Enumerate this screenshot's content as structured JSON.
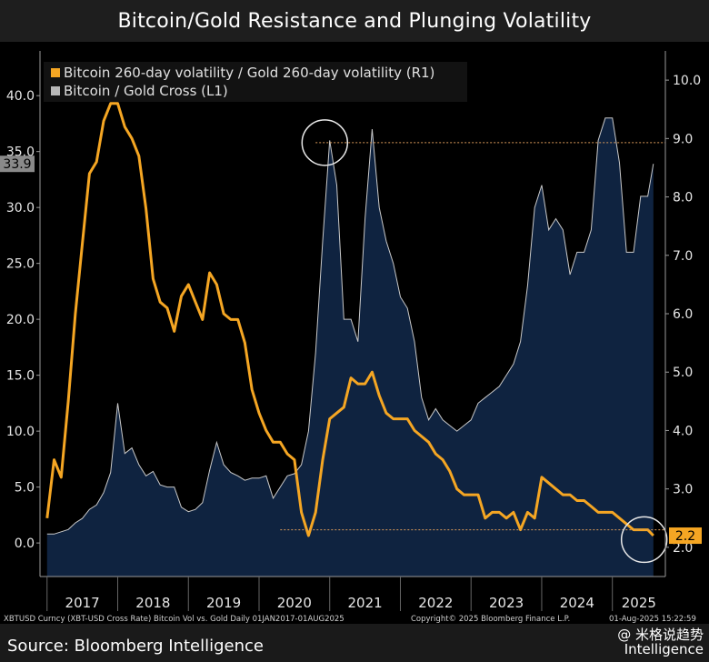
{
  "header": {
    "title": "Bitcoin/Gold Resistance and Plunging Volatility"
  },
  "footer": {
    "source": "Source: Bloomberg Intelligence",
    "ticker_note": "XBTUSD Curncy (XBT-USD Cross Rate) Bitcoin Vol vs. Gold  Daily 01JAN2017-01AUG2025",
    "copyright": "Copyright© 2025 Bloomberg Finance L.P.",
    "timestamp": "01-Aug-2025 15:22:59",
    "watermark": "@ 米格说趋势",
    "watermark_sub": "Intelligence"
  },
  "chart_data": {
    "type": "line",
    "title": "Bitcoin/Gold Resistance and Plunging Volatility",
    "left_axis": {
      "ylim": [
        -3,
        44
      ],
      "ticks": [
        "0.0",
        "5.0",
        "10.0",
        "15.0",
        "20.0",
        "25.0",
        "30.0",
        "35.0",
        "40.0"
      ]
    },
    "right_axis": {
      "ylim": [
        1.5,
        10.5
      ],
      "ticks": [
        "2.0",
        "3.0",
        "4.0",
        "5.0",
        "6.0",
        "7.0",
        "8.0",
        "9.0",
        "10.0"
      ]
    },
    "x_labels": [
      "2017",
      "2018",
      "2019",
      "2020",
      "2021",
      "2022",
      "2023",
      "2024",
      "2025"
    ],
    "legend": {
      "position": "top-left",
      "entries": [
        "Bitcoin 260-day volatility / Gold 260-day volatility (R1)",
        "Bitcoin / Gold Cross (L1)"
      ]
    },
    "last_value_labels": {
      "left": "33.9",
      "right": "2.2"
    },
    "colors": {
      "volatility": "#f5a623",
      "cross_line": "#c9c9c9",
      "cross_fill": "#0f2340",
      "reference": "#d99a5a"
    },
    "series": [
      {
        "name": "Bitcoin 260-day volatility / Gold 260-day volatility (R1)",
        "axis": "right",
        "x": [
          2017.0,
          2017.1,
          2017.2,
          2017.3,
          2017.4,
          2017.5,
          2017.6,
          2017.7,
          2017.8,
          2017.9,
          2018.0,
          2018.1,
          2018.2,
          2018.3,
          2018.4,
          2018.5,
          2018.6,
          2018.7,
          2018.8,
          2018.9,
          2019.0,
          2019.1,
          2019.2,
          2019.3,
          2019.4,
          2019.5,
          2019.6,
          2019.7,
          2019.8,
          2019.9,
          2020.0,
          2020.1,
          2020.2,
          2020.3,
          2020.4,
          2020.5,
          2020.6,
          2020.7,
          2020.8,
          2020.9,
          2021.0,
          2021.1,
          2021.2,
          2021.3,
          2021.4,
          2021.5,
          2021.6,
          2021.7,
          2021.8,
          2021.9,
          2022.0,
          2022.1,
          2022.2,
          2022.3,
          2022.4,
          2022.5,
          2022.6,
          2022.7,
          2022.8,
          2022.9,
          2023.0,
          2023.1,
          2023.2,
          2023.3,
          2023.4,
          2023.5,
          2023.6,
          2023.7,
          2023.8,
          2023.9,
          2024.0,
          2024.1,
          2024.2,
          2024.3,
          2024.4,
          2024.5,
          2024.6,
          2024.7,
          2024.8,
          2024.9,
          2025.0,
          2025.1,
          2025.2,
          2025.3,
          2025.4,
          2025.5,
          2025.58
        ],
        "values": [
          2.5,
          3.5,
          3.2,
          4.5,
          6.0,
          7.2,
          8.4,
          8.6,
          9.3,
          9.6,
          9.6,
          9.2,
          9.0,
          8.7,
          7.8,
          6.6,
          6.2,
          6.1,
          5.7,
          6.3,
          6.5,
          6.2,
          5.9,
          6.7,
          6.5,
          6.0,
          5.9,
          5.9,
          5.5,
          4.7,
          4.3,
          4.0,
          3.8,
          3.8,
          3.6,
          3.5,
          2.6,
          2.2,
          2.6,
          3.5,
          4.2,
          4.3,
          4.4,
          4.9,
          4.8,
          4.8,
          5.0,
          4.6,
          4.3,
          4.2,
          4.2,
          4.2,
          4.0,
          3.9,
          3.8,
          3.6,
          3.5,
          3.3,
          3.0,
          2.9,
          2.9,
          2.9,
          2.5,
          2.6,
          2.6,
          2.5,
          2.6,
          2.3,
          2.6,
          2.5,
          3.2,
          3.1,
          3.0,
          2.9,
          2.9,
          2.8,
          2.8,
          2.7,
          2.6,
          2.6,
          2.6,
          2.5,
          2.4,
          2.3,
          2.3,
          2.3,
          2.2
        ]
      },
      {
        "name": "Bitcoin / Gold Cross (L1)",
        "axis": "left",
        "x": [
          2017.0,
          2017.1,
          2017.2,
          2017.3,
          2017.4,
          2017.5,
          2017.6,
          2017.7,
          2017.8,
          2017.9,
          2018.0,
          2018.1,
          2018.2,
          2018.3,
          2018.4,
          2018.5,
          2018.6,
          2018.7,
          2018.8,
          2018.9,
          2019.0,
          2019.1,
          2019.2,
          2019.3,
          2019.4,
          2019.5,
          2019.6,
          2019.7,
          2019.8,
          2019.9,
          2020.0,
          2020.1,
          2020.2,
          2020.3,
          2020.4,
          2020.5,
          2020.6,
          2020.7,
          2020.8,
          2020.9,
          2021.0,
          2021.1,
          2021.2,
          2021.3,
          2021.4,
          2021.5,
          2021.6,
          2021.7,
          2021.8,
          2021.9,
          2022.0,
          2022.1,
          2022.2,
          2022.3,
          2022.4,
          2022.5,
          2022.6,
          2022.7,
          2022.8,
          2022.9,
          2023.0,
          2023.1,
          2023.2,
          2023.3,
          2023.4,
          2023.5,
          2023.6,
          2023.7,
          2023.8,
          2023.9,
          2024.0,
          2024.1,
          2024.2,
          2024.3,
          2024.4,
          2024.5,
          2024.6,
          2024.7,
          2024.8,
          2024.9,
          2025.0,
          2025.1,
          2025.2,
          2025.3,
          2025.4,
          2025.5,
          2025.58
        ],
        "values": [
          0.8,
          0.8,
          1.0,
          1.2,
          1.8,
          2.2,
          3.0,
          3.4,
          4.5,
          6.3,
          12.5,
          8.0,
          8.5,
          7.0,
          6.0,
          6.4,
          5.2,
          5.0,
          5.0,
          3.2,
          2.8,
          3.0,
          3.6,
          6.5,
          9.0,
          7.0,
          6.3,
          6.0,
          5.6,
          5.8,
          5.8,
          6.0,
          4.0,
          5.0,
          6.0,
          6.2,
          7.0,
          10.0,
          17.0,
          27.0,
          36.0,
          32.0,
          20.0,
          20.0,
          18.0,
          29.0,
          37.0,
          30.0,
          27.0,
          25.0,
          22.0,
          21.0,
          18.0,
          13.0,
          11.0,
          12.0,
          11.0,
          10.5,
          10.0,
          10.5,
          11.0,
          12.5,
          13.0,
          13.5,
          14.0,
          15.0,
          16.0,
          18.0,
          23.0,
          30.0,
          32.0,
          28.0,
          29.0,
          28.0,
          24.0,
          26.0,
          26.0,
          28.0,
          36.0,
          38.0,
          38.0,
          34.0,
          26.0,
          26.0,
          31.0,
          31.0,
          33.9
        ]
      }
    ],
    "reference_lines": [
      {
        "axis": "left",
        "value": 35.8,
        "from_x": 2020.8
      },
      {
        "axis": "right",
        "value": 2.3,
        "from_x": 2020.3
      }
    ],
    "highlight_circles": [
      {
        "x": 2020.93,
        "axis": "left",
        "value": 35.8
      },
      {
        "x": 2025.45,
        "axis": "left",
        "value": 0.3
      }
    ]
  }
}
